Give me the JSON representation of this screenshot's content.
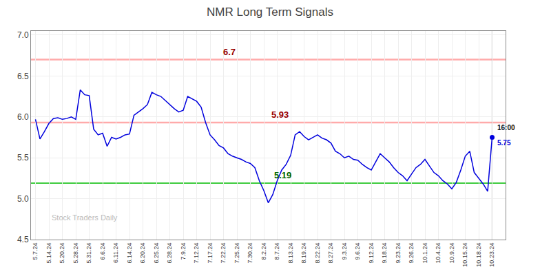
{
  "chart_data": {
    "type": "line",
    "title": "NMR Long Term Signals",
    "categories": [
      "5.7.24",
      null,
      null,
      "5.14.24",
      null,
      null,
      "5.20.24",
      null,
      null,
      "5.28.24",
      null,
      null,
      "5.31.24",
      null,
      null,
      "6.6.24",
      null,
      null,
      "6.11.24",
      null,
      null,
      "6.14.24",
      null,
      null,
      "6.20.24",
      null,
      null,
      "6.25.24",
      null,
      null,
      "6.28.24",
      null,
      null,
      "7.9.24",
      null,
      null,
      "7.12.24",
      null,
      null,
      "7.17.24",
      null,
      null,
      "7.22.24",
      null,
      null,
      "7.25.24",
      null,
      null,
      "7.30.24",
      null,
      null,
      "8.2.24",
      null,
      null,
      "8.7.24",
      null,
      null,
      "8.13.24",
      null,
      null,
      "8.19.24",
      null,
      null,
      "8.22.24",
      null,
      null,
      "8.27.24",
      null,
      null,
      "9.3.24",
      null,
      null,
      "9.6.24",
      null,
      null,
      "9.12.24",
      null,
      null,
      "9.18.24",
      null,
      null,
      "9.23.24",
      null,
      null,
      "9.26.24",
      null,
      null,
      "10.1.24",
      null,
      null,
      "10.4.24",
      null,
      null,
      "10.9.24",
      null,
      null,
      "10.15.24",
      null,
      null,
      "10.18.24",
      null,
      null,
      "10.23.24"
    ],
    "values": [
      5.97,
      5.73,
      5.82,
      5.92,
      5.98,
      5.99,
      5.97,
      5.98,
      6.0,
      5.97,
      6.33,
      6.27,
      6.26,
      5.85,
      5.78,
      5.8,
      5.64,
      5.75,
      5.73,
      5.75,
      5.78,
      5.79,
      6.02,
      6.06,
      6.1,
      6.15,
      6.3,
      6.27,
      6.25,
      6.2,
      6.15,
      6.1,
      6.06,
      6.08,
      6.25,
      6.22,
      6.19,
      6.12,
      5.93,
      5.78,
      5.72,
      5.65,
      5.62,
      5.55,
      5.52,
      5.5,
      5.48,
      5.45,
      5.43,
      5.38,
      5.22,
      5.1,
      4.95,
      5.05,
      5.22,
      5.35,
      5.42,
      5.53,
      5.78,
      5.82,
      5.76,
      5.72,
      5.75,
      5.78,
      5.74,
      5.72,
      5.68,
      5.58,
      5.55,
      5.5,
      5.52,
      5.48,
      5.47,
      5.42,
      5.38,
      5.35,
      5.45,
      5.55,
      5.5,
      5.45,
      5.38,
      5.32,
      5.28,
      5.22,
      5.3,
      5.38,
      5.42,
      5.48,
      5.4,
      5.32,
      5.28,
      5.22,
      5.18,
      5.12,
      5.2,
      5.35,
      5.52,
      5.58,
      5.32,
      5.25,
      5.18,
      5.09,
      5.75
    ],
    "color": "#0000dd",
    "ylim": [
      4.5,
      7.05
    ],
    "yticks": [
      4.5,
      {
        "value": 5,
        "label": "5.0"
      },
      5.5,
      {
        "value": 6,
        "label": "6.0"
      },
      6.5,
      {
        "value": 7,
        "label": "7.0"
      }
    ],
    "grid": true,
    "hlines": [
      {
        "value": 6.7,
        "label": "6.7",
        "color": "#ffaaaa",
        "label_color": "#990000"
      },
      {
        "value": 5.93,
        "label": "5.93",
        "color": "#ffaaaa",
        "label_color": "#990000"
      },
      {
        "value": 5.19,
        "label": "5.19",
        "color": "#00bb00",
        "label_color": "#006600"
      }
    ],
    "last_point": {
      "time": "16:00",
      "time_color": "#111111",
      "value_color": "#0000dd"
    },
    "watermark": {
      "text": "Stock Traders Daily",
      "color": "#bbbbbb"
    }
  }
}
